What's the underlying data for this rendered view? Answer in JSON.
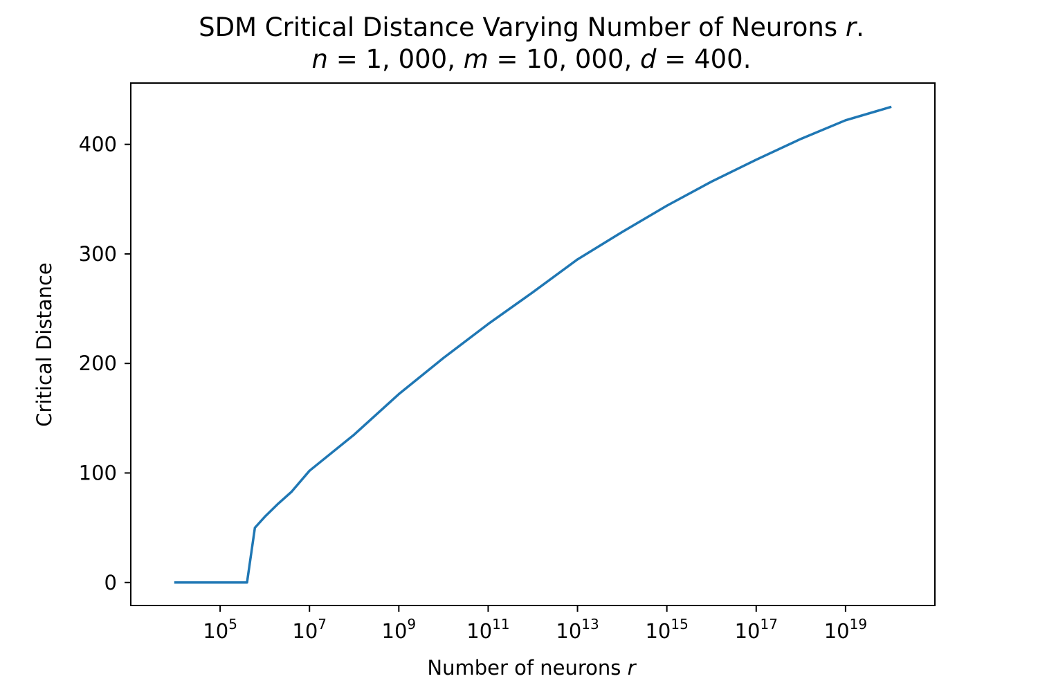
{
  "chart_data": {
    "type": "line",
    "title": "SDM Critical Distance Varying Number of Neurons r.",
    "subtitle": "n = 1,000, m = 10,000, d = 400.",
    "title_parts": [
      {
        "text": "SDM Critical Distance Varying Number of Neurons ",
        "italic": false
      },
      {
        "text": "r",
        "italic": true
      },
      {
        "text": ".",
        "italic": false
      }
    ],
    "subtitle_parts": [
      {
        "text": "n",
        "italic": true
      },
      {
        "text": " = 1, 000, ",
        "italic": false
      },
      {
        "text": "m",
        "italic": true
      },
      {
        "text": " = 10, 000, ",
        "italic": false
      },
      {
        "text": "d",
        "italic": true
      },
      {
        "text": " = 400.",
        "italic": false
      }
    ],
    "xlabel": "Number of neurons r",
    "xlabel_parts": [
      {
        "text": "Number of neurons ",
        "italic": false
      },
      {
        "text": "r",
        "italic": true
      }
    ],
    "ylabel": "Critical Distance",
    "xscale": "log",
    "xlim": [
      1000,
      1e+21
    ],
    "ylim": [
      -21,
      456
    ],
    "xticks": [
      {
        "value": 100000,
        "base": "10",
        "exp": "5"
      },
      {
        "value": 10000000,
        "base": "10",
        "exp": "7"
      },
      {
        "value": 1000000000,
        "base": "10",
        "exp": "9"
      },
      {
        "value": 100000000000,
        "base": "10",
        "exp": "11"
      },
      {
        "value": 10000000000000,
        "base": "10",
        "exp": "13"
      },
      {
        "value": 1000000000000000,
        "base": "10",
        "exp": "15"
      },
      {
        "value": 100000000000000000,
        "base": "10",
        "exp": "17"
      },
      {
        "value": 10000000000000000000,
        "base": "10",
        "exp": "19"
      }
    ],
    "yticks": [
      0,
      100,
      200,
      300,
      400
    ],
    "grid": false,
    "series": [
      {
        "color": "#1f77b4",
        "x": [
          10000,
          100000,
          400000,
          600000,
          1000000,
          2000000,
          4000000,
          10000000,
          100000000,
          1000000000,
          10000000000,
          100000000000,
          1000000000000,
          10000000000000,
          100000000000000,
          1000000000000000,
          10000000000000000,
          100000000000000000,
          1000000000000000000,
          10000000000000000000,
          100000000000000000000
        ],
        "y": [
          0,
          0,
          0,
          50,
          60,
          72,
          83,
          102,
          135,
          172,
          205,
          236,
          265,
          295,
          320,
          344,
          366,
          386,
          405,
          422,
          434
        ]
      }
    ]
  }
}
